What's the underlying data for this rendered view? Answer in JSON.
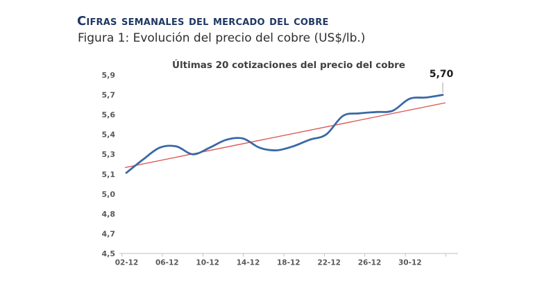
{
  "header": {
    "title": "Cifras semanales del mercado del cobre",
    "subtitle": "Figura 1: Evolución del precio del cobre (US$/lb.)"
  },
  "chart_data": {
    "type": "line",
    "title": "Últimas 20 cotizaciones del precio del cobre",
    "x_tick_labels": [
      "02-12",
      "06-12",
      "10-12",
      "14-12",
      "18-12",
      "22-12",
      "26-12",
      "30-12"
    ],
    "y_axis": {
      "tick_labels_top_to_bottom": [
        "5,9",
        "5,7",
        "5,6",
        "5,4",
        "5,3",
        "5,1",
        "5,0",
        "4,8",
        "4,7",
        "4,5"
      ],
      "tick_values_top_to_bottom": [
        5.85,
        5.7,
        5.55,
        5.4,
        5.25,
        5.1,
        4.95,
        4.8,
        4.65,
        4.5
      ],
      "min": 4.5,
      "max": 5.85
    },
    "price_series": {
      "color": "#3a68a6",
      "values": [
        5.11,
        5.21,
        5.3,
        5.31,
        5.25,
        5.3,
        5.36,
        5.37,
        5.3,
        5.28,
        5.31,
        5.36,
        5.4,
        5.54,
        5.56,
        5.57,
        5.58,
        5.67,
        5.68,
        5.7
      ]
    },
    "trend_line": {
      "color": "#dd5a55",
      "start_value": 5.15,
      "end_value": 5.64
    },
    "last_point_label": "5,70",
    "grid": false,
    "legend": "none",
    "colors": {
      "axis_line": "#bfbfbf",
      "tick_label": "#595959",
      "leader_line": "#a6a6a6",
      "title_navy": "#1f3864"
    }
  }
}
